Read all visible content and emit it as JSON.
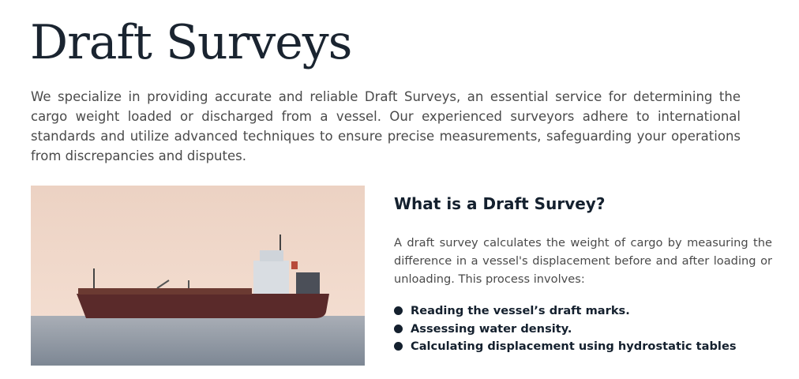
{
  "header": {
    "title": "Draft Surveys"
  },
  "intro": "We specialize in providing accurate and reliable Draft Surveys, an essential service for determining the cargo weight loaded or discharged from a vessel. Our experienced surveyors adhere to international standards and utilize advanced techniques to ensure precise measurements, safeguarding your operations from discrepancies and disputes.",
  "section": {
    "heading": "What is a Draft Survey?",
    "text": "A draft survey calculates the weight of cargo by measuring the difference in a vessel's displacement before and after loading or unloading. This process involves:",
    "bullets": [
      "Reading the vessel’s draft marks.",
      "Assessing water density.",
      "Calculating displacement using hydrostatic tables"
    ]
  }
}
